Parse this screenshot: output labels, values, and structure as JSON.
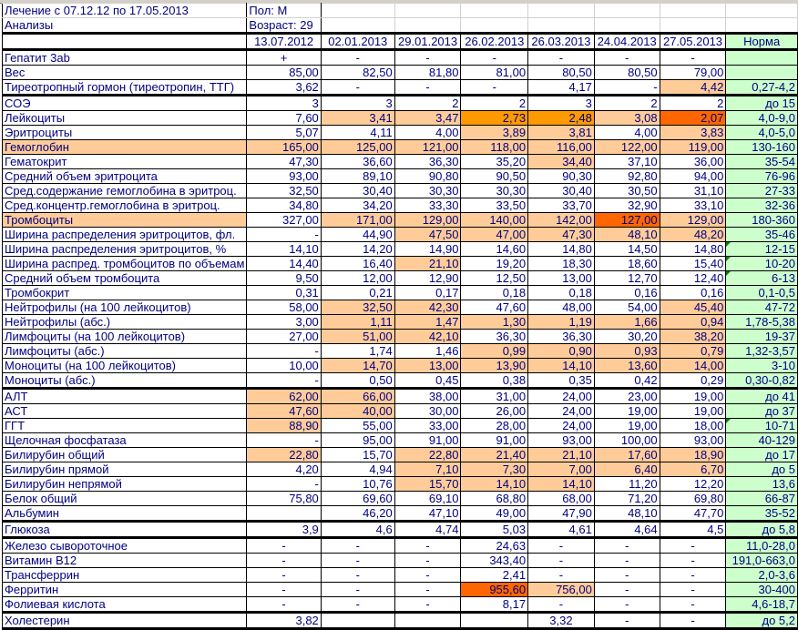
{
  "sheet": {
    "title": "Лечение с 07.12.12 по 17.05.2013",
    "subtitle": "Анализы",
    "sex": "Пол: М",
    "age": "Возраст: 29",
    "dates": [
      "13.07.2012",
      "02.01.2013",
      "29.01.2013",
      "26.02.2013",
      "26.03.2013",
      "24.04.2013",
      "27.05.2013"
    ],
    "norm_header": "Норма",
    "colors": {
      "light_out_of_range": "#ffcc99",
      "moderate": "#ff9900",
      "severe": "#ff6600",
      "norm": "#ccffcc",
      "text": "#000080"
    },
    "rows": [
      {
        "label": "Гепатит 3ab",
        "values": [
          "+",
          "-",
          "-",
          "-",
          "-",
          "-",
          "-"
        ],
        "norm": "",
        "hl": []
      },
      {
        "label": "Вес",
        "values": [
          "85,00",
          "82,50",
          "81,80",
          "81,00",
          "80,50",
          "80,50",
          "79,00"
        ],
        "norm": "",
        "hl": []
      },
      {
        "label": "Тиреотропный гормон (тиреотропин, ТТГ)",
        "values": [
          "3,62",
          "-",
          "-",
          "-",
          "4,17",
          "-",
          "4,42"
        ],
        "norm": "0,27-4,2",
        "hl": [
          "",
          "",
          "",
          "",
          "",
          "",
          "l"
        ]
      },
      {
        "label": "СОЭ",
        "values": [
          "3",
          "3",
          "2",
          "2",
          "3",
          "2",
          "2"
        ],
        "norm": "до 15",
        "hl": []
      },
      {
        "label": "Лейкоциты",
        "values": [
          "7,60",
          "3,41",
          "3,47",
          "2,73",
          "2,48",
          "3,08",
          "2,07"
        ],
        "norm": "4,0-9,0",
        "hl": [
          "",
          "l",
          "l",
          "o",
          "o",
          "l",
          "r"
        ]
      },
      {
        "label": "Эритроциты",
        "values": [
          "5,07",
          "4,11",
          "4,00",
          "3,89",
          "3,81",
          "4,00",
          "3,83"
        ],
        "norm": "4,0-5,0",
        "hl": [
          "",
          "",
          "",
          "l",
          "l",
          "",
          "l"
        ]
      },
      {
        "label": "Гемоглобин",
        "values": [
          "165,00",
          "125,00",
          "121,00",
          "118,00",
          "116,00",
          "122,00",
          "119,00"
        ],
        "norm": "130-160",
        "hl": [
          "l",
          "l",
          "l",
          "l",
          "l",
          "l",
          "l"
        ],
        "label_hl": "l"
      },
      {
        "label": "Гематокрит",
        "values": [
          "47,30",
          "36,60",
          "36,30",
          "35,20",
          "34,40",
          "37,10",
          "36,00"
        ],
        "norm": "35-54",
        "hl": [
          "",
          "",
          "",
          "",
          "l",
          "",
          ""
        ]
      },
      {
        "label": "Средний объем эритроцита",
        "values": [
          "93,00",
          "89,10",
          "90,80",
          "90,50",
          "90,30",
          "92,80",
          "94,00"
        ],
        "norm": "76-96",
        "hl": []
      },
      {
        "label": "Сред.содержание гемоглобина в эритроц.",
        "values": [
          "32,50",
          "30,40",
          "30,30",
          "30,30",
          "30,40",
          "30,50",
          "31,10"
        ],
        "norm": "27-33",
        "hl": []
      },
      {
        "label": "Сред.концентр.гемоглобина в эритроц.",
        "values": [
          "34,80",
          "34,20",
          "33,30",
          "33,50",
          "33,70",
          "32,90",
          "33,10"
        ],
        "norm": "32-36",
        "hl": []
      },
      {
        "label": "Тромбоциты",
        "values": [
          "327,00",
          "171,00",
          "129,00",
          "140,00",
          "142,00",
          "127,00",
          "129,00"
        ],
        "norm": "180-360",
        "hl": [
          "",
          "l",
          "l",
          "l",
          "l",
          "r",
          "l"
        ],
        "label_hl": "l"
      },
      {
        "label": "Ширина распределения эритроцитов, фл.",
        "values": [
          "-",
          "44,90",
          "47,50",
          "47,00",
          "47,30",
          "48,10",
          "48,20"
        ],
        "norm": "35-46",
        "hl": [
          "",
          "",
          "l",
          "l",
          "l",
          "l",
          "l"
        ]
      },
      {
        "label": "Ширина распределения эритроцитов, %",
        "values": [
          "14,10",
          "14,20",
          "14,90",
          "14,60",
          "14,80",
          "14,50",
          "14,80"
        ],
        "norm": "12-15",
        "hl": []
      },
      {
        "label": "Ширина распред. тромбоцитов по объемам",
        "values": [
          "14,40",
          "16,40",
          "21,10",
          "19,20",
          "18,30",
          "18,60",
          "15,40"
        ],
        "norm": "10-20",
        "hl": [
          "",
          "",
          "l",
          "",
          "",
          "",
          ""
        ]
      },
      {
        "label": "Средний объем тромбоцита",
        "values": [
          "9,50",
          "12,00",
          "12,90",
          "12,50",
          "13,00",
          "12,70",
          "12,40"
        ],
        "norm": "6-13",
        "hl": []
      },
      {
        "label": "Тромбокрит",
        "values": [
          "0,31",
          "0,21",
          "0,17",
          "0,18",
          "0,18",
          "0,16",
          "0,16"
        ],
        "norm": "0,1-0,5",
        "hl": []
      },
      {
        "label": "Нейтрофилы (на 100 лейкоцитов)",
        "values": [
          "58,00",
          "32,50",
          "42,30",
          "47,60",
          "48,00",
          "54,00",
          "45,40"
        ],
        "norm": "47-72",
        "hl": [
          "",
          "l",
          "l",
          "",
          "",
          "",
          "l"
        ]
      },
      {
        "label": "Нейтрофилы (абс.)",
        "values": [
          "3,00",
          "1,11",
          "1,47",
          "1,30",
          "1,19",
          "1,66",
          "0,94"
        ],
        "norm": "1,78-5,38",
        "hl": [
          "",
          "l",
          "l",
          "l",
          "l",
          "l",
          "l"
        ]
      },
      {
        "label": "Лимфоциты (на 100 лейкоцитов)",
        "values": [
          "27,00",
          "51,00",
          "42,10",
          "36,30",
          "36,30",
          "30,20",
          "38,20"
        ],
        "norm": "19-37",
        "hl": [
          "",
          "l",
          "l",
          "",
          "",
          "",
          "l"
        ]
      },
      {
        "label": "Лимфоциты (абс.)",
        "values": [
          "-",
          "1,74",
          "1,46",
          "0,99",
          "0,90",
          "0,93",
          "0,79"
        ],
        "norm": "1,32-3,57",
        "hl": [
          "",
          "",
          "",
          "l",
          "l",
          "l",
          "l"
        ]
      },
      {
        "label": "Моноциты (на 100 лейкоцитов)",
        "values": [
          "10,00",
          "14,70",
          "13,00",
          "13,90",
          "14,10",
          "13,60",
          "14,00"
        ],
        "norm": "3-10",
        "hl": [
          "",
          "l",
          "l",
          "l",
          "l",
          "l",
          "l"
        ]
      },
      {
        "label": "Моноциты (абс.)",
        "values": [
          "-",
          "0,50",
          "0,45",
          "0,38",
          "0,35",
          "0,42",
          "0,29"
        ],
        "norm": "0,30-0,82",
        "hl": []
      },
      {
        "label": "АЛТ",
        "values": [
          "62,00",
          "66,00",
          "38,00",
          "31,00",
          "24,00",
          "23,00",
          "19,00"
        ],
        "norm": "до 41",
        "hl": [
          "l",
          "l",
          "",
          "",
          "",
          "",
          ""
        ]
      },
      {
        "label": "АСТ",
        "values": [
          "47,60",
          "40,00",
          "30,00",
          "26,00",
          "24,00",
          "19,00",
          "19,00"
        ],
        "norm": "до 37",
        "hl": [
          "l",
          "l",
          "",
          "",
          "",
          "",
          ""
        ]
      },
      {
        "label": "ГГТ",
        "values": [
          "88,90",
          "55,00",
          "33,00",
          "28,00",
          "24,00",
          "19,00",
          "18,00"
        ],
        "norm": "10-71",
        "hl": [
          "l",
          "",
          "",
          "",
          "",
          "",
          ""
        ]
      },
      {
        "label": "Щелочная фосфатаза",
        "values": [
          "-",
          "95,00",
          "91,00",
          "91,00",
          "93,00",
          "100,00",
          "93,00"
        ],
        "norm": "40-129",
        "hl": []
      },
      {
        "label": "Билирубин общий",
        "values": [
          "22,80",
          "15,70",
          "22,80",
          "21,40",
          "21,10",
          "17,60",
          "18,90"
        ],
        "norm": "до 17",
        "hl": [
          "l",
          "",
          "l",
          "l",
          "l",
          "l",
          "l"
        ]
      },
      {
        "label": "Билирубин прямой",
        "values": [
          "4,20",
          "4,94",
          "7,10",
          "7,30",
          "7,00",
          "6,40",
          "6,70"
        ],
        "norm": "до 5",
        "hl": [
          "",
          "",
          "l",
          "l",
          "l",
          "l",
          "l"
        ]
      },
      {
        "label": "Билирубин непрямой",
        "values": [
          "-",
          "10,76",
          "15,70",
          "14,10",
          "14,10",
          "11,20",
          "12,20"
        ],
        "norm": "13,6",
        "hl": [
          "",
          "",
          "l",
          "l",
          "l",
          "",
          ""
        ]
      },
      {
        "label": "Белок общий",
        "values": [
          "75,80",
          "69,60",
          "69,10",
          "68,80",
          "68,00",
          "71,20",
          "69,80"
        ],
        "norm": "66-87",
        "hl": []
      },
      {
        "label": "Альбумин",
        "values": [
          "",
          "46,20",
          "47,10",
          "49,00",
          "47,90",
          "48,10",
          "47,70"
        ],
        "norm": "35-52",
        "hl": []
      },
      {
        "label": "Глюкоза",
        "values": [
          "3,9",
          "4,6",
          "4,74",
          "5,03",
          "4,61",
          "4,64",
          "4,5"
        ],
        "norm": "до 5,8",
        "hl": []
      },
      {
        "label": "Железо сывороточное",
        "values": [
          "-",
          "-",
          "-",
          "24,63",
          "-",
          "-",
          "-"
        ],
        "norm": "11,0-28,0",
        "hl": []
      },
      {
        "label": "Витамин B12",
        "values": [
          "-",
          "-",
          "-",
          "343,40",
          "-",
          "-",
          "-"
        ],
        "norm": "191,0-663,0",
        "hl": []
      },
      {
        "label": "Трансферрин",
        "values": [
          "-",
          "-",
          "-",
          "2,41",
          "-",
          "-",
          "-"
        ],
        "norm": "2,0-3,6",
        "hl": []
      },
      {
        "label": "Ферритин",
        "values": [
          "-",
          "-",
          "-",
          "955,60",
          "756,00",
          "-",
          "-"
        ],
        "norm": "30-400",
        "hl": [
          "",
          "",
          "",
          "r",
          "l",
          "",
          ""
        ]
      },
      {
        "label": "Фолиевая кислота",
        "values": [
          "-",
          "-",
          "-",
          "8,17",
          "-",
          "-",
          "-"
        ],
        "norm": "4,6-18,7",
        "hl": []
      },
      {
        "label": "Холестерин",
        "values": [
          "3,82",
          "",
          "",
          "",
          "3,32",
          "-",
          "-"
        ],
        "norm": "до 5,2",
        "hl": []
      }
    ]
  }
}
